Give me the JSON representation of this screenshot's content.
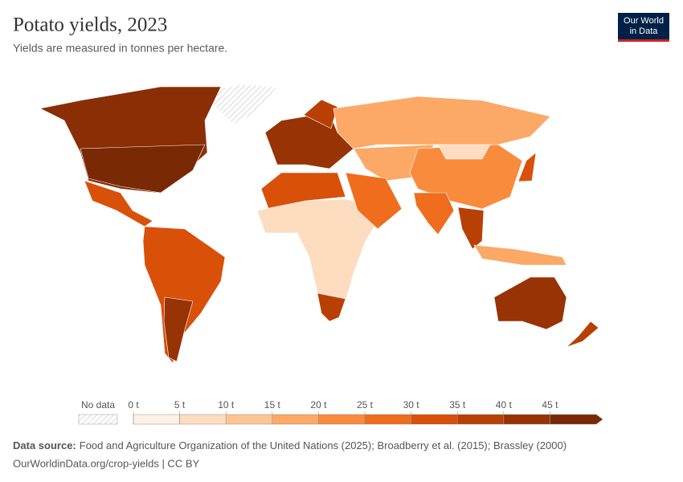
{
  "chart_data": {
    "type": "choropleth",
    "title": "Potato yields, 2023",
    "subtitle": "Yields are measured in tonnes per hectare.",
    "logo": [
      "Our World",
      "in Data"
    ],
    "legend": {
      "no_data": "No data",
      "lim": [
        0,
        50
      ],
      "ticks": [
        {
          "value": 0,
          "label": "0 t"
        },
        {
          "value": 5,
          "label": "5 t"
        },
        {
          "value": 10,
          "label": "10 t"
        },
        {
          "value": 15,
          "label": "15 t"
        },
        {
          "value": 20,
          "label": "20 t"
        },
        {
          "value": 25,
          "label": "25 t"
        },
        {
          "value": 30,
          "label": "30 t"
        },
        {
          "value": 35,
          "label": "35 t"
        },
        {
          "value": 40,
          "label": "40 t"
        },
        {
          "value": 45,
          "label": "45 t"
        }
      ],
      "colors": [
        "#fef1e4",
        "#fddcc0",
        "#fdc592",
        "#fca866",
        "#f98b3d",
        "#ef6d1c",
        "#d95009",
        "#b84005",
        "#983305",
        "#7a2905"
      ]
    },
    "source_label": "Data source:",
    "source": "Food and Agriculture Organization of the United Nations (2025); Broadberry et al. (2015); Brassley (2000)",
    "url": "OurWorldinData.org/crop-yields | CC BY"
  }
}
